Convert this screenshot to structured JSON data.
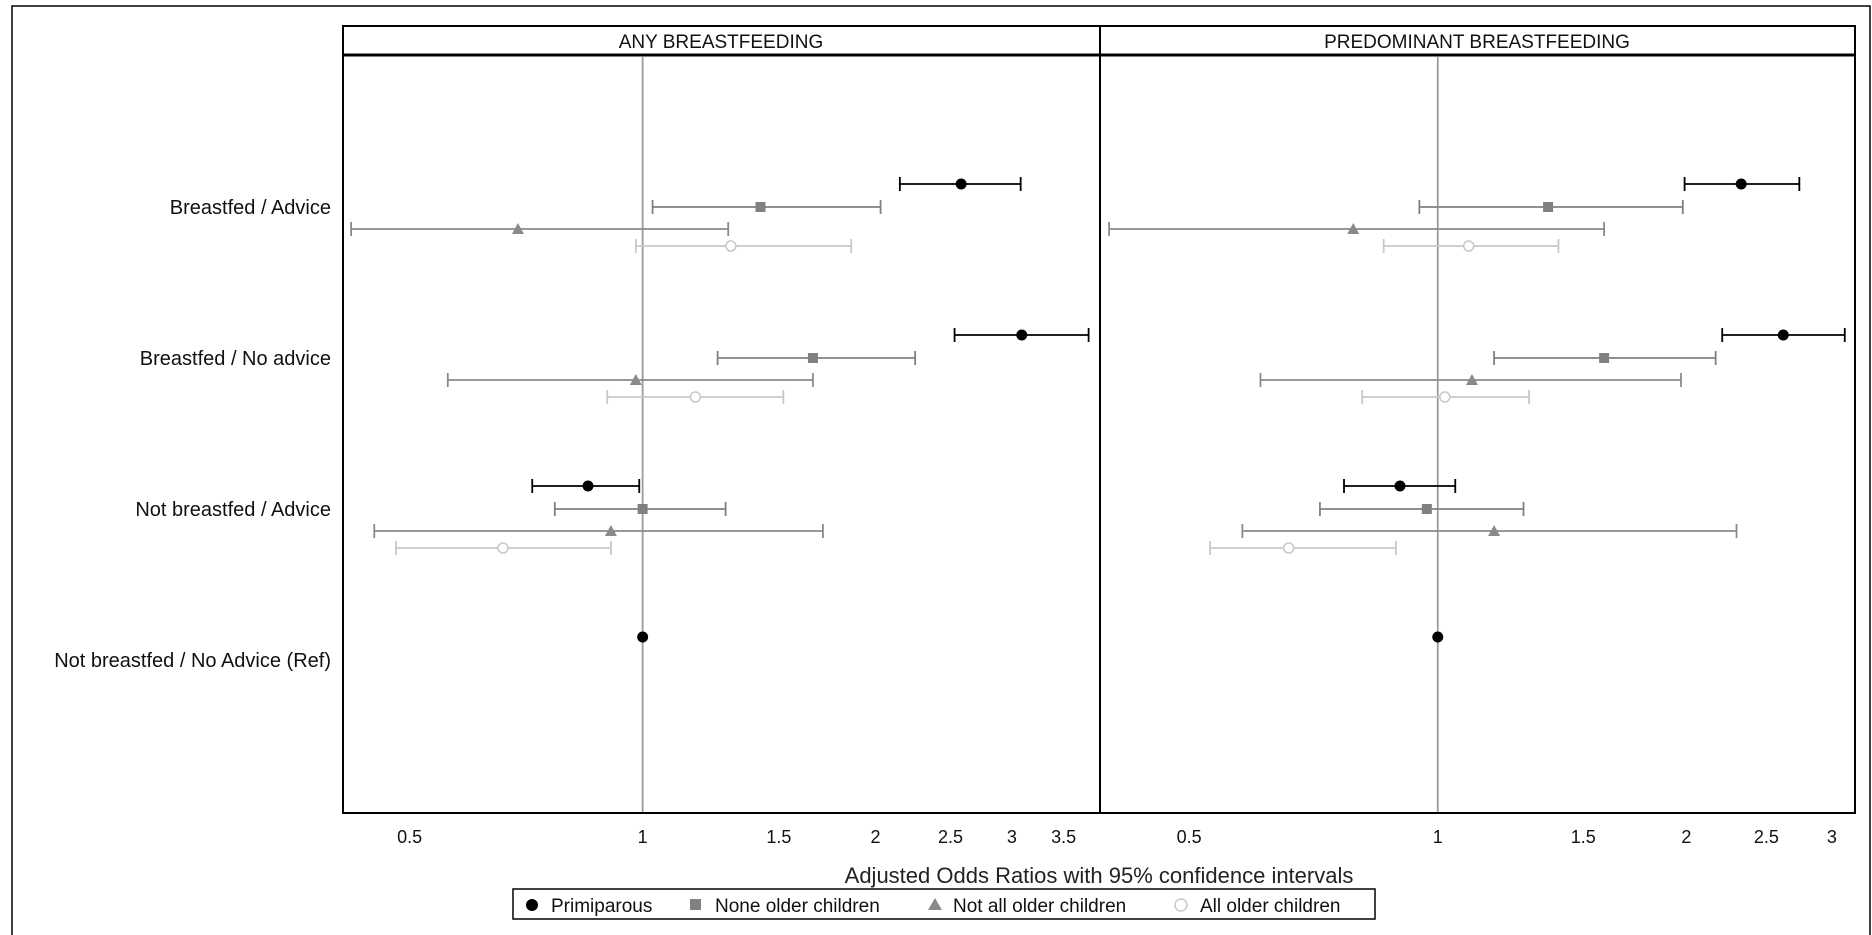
{
  "chart_data": {
    "type": "scatter",
    "subtype": "forest-plot",
    "xlabel": "Adjusted Odds Ratios with 95% confidence intervals",
    "x_scale": "log",
    "rows": [
      "Breastfed / Advice",
      "Breastfed / No advice",
      "Not breastfed / Advice",
      "Not breastfed / No Advice (Ref)"
    ],
    "series": [
      {
        "name": "Primiparous",
        "marker": "circle",
        "color": "#000000"
      },
      {
        "name": "None older children",
        "marker": "square",
        "color": "#808080"
      },
      {
        "name": "Not all older children",
        "marker": "triangle",
        "color": "#8a8a8a"
      },
      {
        "name": "All older children",
        "marker": "open-circle",
        "color": "#c8c8c8"
      }
    ],
    "panels": [
      {
        "title": "ANY BREASTFEEDING",
        "xlim": [
          0.41,
          3.9
        ],
        "ticks": [
          {
            "value": 0.5,
            "label": "0.5"
          },
          {
            "value": 1,
            "label": "1"
          },
          {
            "value": 1.5,
            "label": "1.5"
          },
          {
            "value": 2,
            "label": "2"
          },
          {
            "value": 2.5,
            "label": "2.5"
          },
          {
            "value": 3,
            "label": "3"
          },
          {
            "value": 3.5,
            "label": "3.5"
          }
        ],
        "estimates": [
          {
            "row": 0,
            "series": 0,
            "or": 2.58,
            "lo": 2.15,
            "hi": 3.08
          },
          {
            "row": 0,
            "series": 1,
            "or": 1.42,
            "lo": 1.03,
            "hi": 2.03
          },
          {
            "row": 0,
            "series": 2,
            "or": 0.69,
            "lo": 0.42,
            "hi": 1.29
          },
          {
            "row": 0,
            "series": 3,
            "or": 1.3,
            "lo": 0.98,
            "hi": 1.86
          },
          {
            "row": 1,
            "series": 0,
            "or": 3.09,
            "lo": 2.53,
            "hi": 3.77
          },
          {
            "row": 1,
            "series": 1,
            "or": 1.66,
            "lo": 1.25,
            "hi": 2.25
          },
          {
            "row": 1,
            "series": 2,
            "or": 0.98,
            "lo": 0.56,
            "hi": 1.66
          },
          {
            "row": 1,
            "series": 3,
            "or": 1.17,
            "lo": 0.9,
            "hi": 1.52
          },
          {
            "row": 2,
            "series": 0,
            "or": 0.85,
            "lo": 0.72,
            "hi": 0.99
          },
          {
            "row": 2,
            "series": 1,
            "or": 1.0,
            "lo": 0.77,
            "hi": 1.28
          },
          {
            "row": 2,
            "series": 2,
            "or": 0.91,
            "lo": 0.45,
            "hi": 1.71
          },
          {
            "row": 2,
            "series": 3,
            "or": 0.66,
            "lo": 0.48,
            "hi": 0.91
          },
          {
            "row": 3,
            "series": 0,
            "or": 1.0,
            "lo": 1.0,
            "hi": 1.0
          }
        ]
      },
      {
        "title": "PREDOMINANT BREASTFEEDING",
        "xlim": [
          0.39,
          3.2
        ],
        "ticks": [
          {
            "value": 0.5,
            "label": "0.5"
          },
          {
            "value": 1,
            "label": "1"
          },
          {
            "value": 1.5,
            "label": "1.5"
          },
          {
            "value": 2,
            "label": "2"
          },
          {
            "value": 2.5,
            "label": "2.5"
          },
          {
            "value": 3,
            "label": "3"
          }
        ],
        "estimates": [
          {
            "row": 0,
            "series": 0,
            "or": 2.33,
            "lo": 1.99,
            "hi": 2.74
          },
          {
            "row": 0,
            "series": 1,
            "or": 1.36,
            "lo": 0.95,
            "hi": 1.98
          },
          {
            "row": 0,
            "series": 2,
            "or": 0.79,
            "lo": 0.4,
            "hi": 1.59
          },
          {
            "row": 0,
            "series": 3,
            "or": 1.09,
            "lo": 0.86,
            "hi": 1.4
          },
          {
            "row": 1,
            "series": 0,
            "or": 2.62,
            "lo": 2.21,
            "hi": 3.11
          },
          {
            "row": 1,
            "series": 1,
            "or": 1.59,
            "lo": 1.17,
            "hi": 2.17
          },
          {
            "row": 1,
            "series": 2,
            "or": 1.1,
            "lo": 0.61,
            "hi": 1.97
          },
          {
            "row": 1,
            "series": 3,
            "or": 1.02,
            "lo": 0.81,
            "hi": 1.29
          },
          {
            "row": 2,
            "series": 0,
            "or": 0.9,
            "lo": 0.77,
            "hi": 1.05
          },
          {
            "row": 2,
            "series": 1,
            "or": 0.97,
            "lo": 0.72,
            "hi": 1.27
          },
          {
            "row": 2,
            "series": 2,
            "or": 1.17,
            "lo": 0.58,
            "hi": 2.3
          },
          {
            "row": 2,
            "series": 3,
            "or": 0.66,
            "lo": 0.53,
            "hi": 0.89
          },
          {
            "row": 3,
            "series": 0,
            "or": 1.0,
            "lo": 1.0,
            "hi": 1.0
          }
        ]
      }
    ]
  }
}
